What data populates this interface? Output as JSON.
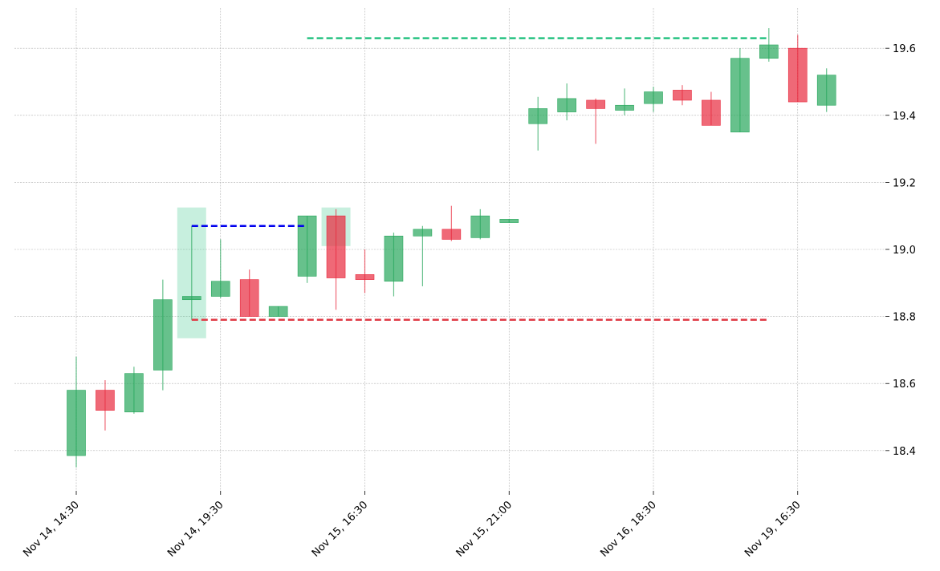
{
  "chart_data": {
    "type": "candlestick",
    "title": "",
    "xlabel": "",
    "ylabel": "",
    "ylim": [
      18.28,
      19.72
    ],
    "grid": true,
    "y_axis_side": "right",
    "yticks": [
      18.4,
      18.6,
      18.8,
      19.0,
      19.2,
      19.4,
      19.6
    ],
    "ytick_labels": [
      "18.4",
      "18.6",
      "18.8",
      "19.0",
      "19.2",
      "19.4",
      "19.6"
    ],
    "xticks": [
      {
        "index": 0,
        "label": "Nov 14, 14:30"
      },
      {
        "index": 5,
        "label": "Nov 14, 19:30"
      },
      {
        "index": 10,
        "label": "Nov 15, 16:30"
      },
      {
        "index": 15,
        "label": "Nov 15, 21:00"
      },
      {
        "index": 20,
        "label": "Nov 16, 18:30"
      },
      {
        "index": 25,
        "label": "Nov 19, 16:30"
      }
    ],
    "colors": {
      "up": "#26a65b",
      "down": "#e8293d",
      "grid": "#b0b0b0"
    },
    "candles": [
      {
        "open": 18.385,
        "high": 18.68,
        "low": 18.35,
        "close": 18.58
      },
      {
        "open": 18.58,
        "high": 18.61,
        "low": 18.46,
        "close": 18.52
      },
      {
        "open": 18.515,
        "high": 18.65,
        "low": 18.51,
        "close": 18.63
      },
      {
        "open": 18.64,
        "high": 18.91,
        "low": 18.58,
        "close": 18.85
      },
      {
        "open": 18.85,
        "high": 19.07,
        "low": 18.79,
        "close": 18.86
      },
      {
        "open": 18.86,
        "high": 19.03,
        "low": 18.855,
        "close": 18.905
      },
      {
        "open": 18.91,
        "high": 18.94,
        "low": 18.8,
        "close": 18.8
      },
      {
        "open": 18.8,
        "high": 18.83,
        "low": 18.8,
        "close": 18.83
      },
      {
        "open": 18.92,
        "high": 19.1,
        "low": 18.9,
        "close": 19.1
      },
      {
        "open": 19.1,
        "high": 19.12,
        "low": 18.82,
        "close": 18.915
      },
      {
        "open": 18.925,
        "high": 19.0,
        "low": 18.87,
        "close": 18.91
      },
      {
        "open": 18.905,
        "high": 19.05,
        "low": 18.86,
        "close": 19.04
      },
      {
        "open": 19.04,
        "high": 19.07,
        "low": 18.89,
        "close": 19.06
      },
      {
        "open": 19.06,
        "high": 19.13,
        "low": 19.025,
        "close": 19.03
      },
      {
        "open": 19.035,
        "high": 19.12,
        "low": 19.03,
        "close": 19.1
      },
      {
        "open": 19.08,
        "high": 19.09,
        "low": 19.08,
        "close": 19.09
      },
      {
        "open": 19.375,
        "high": 19.455,
        "low": 19.295,
        "close": 19.42
      },
      {
        "open": 19.41,
        "high": 19.495,
        "low": 19.385,
        "close": 19.45
      },
      {
        "open": 19.445,
        "high": 19.45,
        "low": 19.315,
        "close": 19.42
      },
      {
        "open": 19.415,
        "high": 19.48,
        "low": 19.4,
        "close": 19.43
      },
      {
        "open": 19.435,
        "high": 19.485,
        "low": 19.41,
        "close": 19.47
      },
      {
        "open": 19.475,
        "high": 19.49,
        "low": 19.43,
        "close": 19.445
      },
      {
        "open": 19.445,
        "high": 19.47,
        "low": 19.37,
        "close": 19.37
      },
      {
        "open": 19.35,
        "high": 19.6,
        "low": 19.35,
        "close": 19.57
      },
      {
        "open": 19.57,
        "high": 19.66,
        "low": 19.56,
        "close": 19.61
      },
      {
        "open": 19.6,
        "high": 19.64,
        "low": 19.44,
        "close": 19.44
      },
      {
        "open": 19.43,
        "high": 19.54,
        "low": 19.41,
        "close": 19.52
      }
    ],
    "highlight_boxes": [
      {
        "index": 4,
        "y_low": 18.735,
        "y_high": 19.125,
        "color": "#26c281"
      },
      {
        "index": 9,
        "y_low": 19.01,
        "y_high": 19.125,
        "color": "#26c281"
      }
    ],
    "reference_lines": [
      {
        "y": 19.07,
        "x_start": 4,
        "x_end": 8,
        "color": "#0000ee",
        "style": "dashed"
      },
      {
        "y": 18.79,
        "x_start": 4,
        "x_end": 24,
        "color": "#e03b46",
        "style": "dashed"
      },
      {
        "y": 19.63,
        "x_start": 8,
        "x_end": 24,
        "color": "#26c281",
        "style": "dashed"
      }
    ]
  }
}
